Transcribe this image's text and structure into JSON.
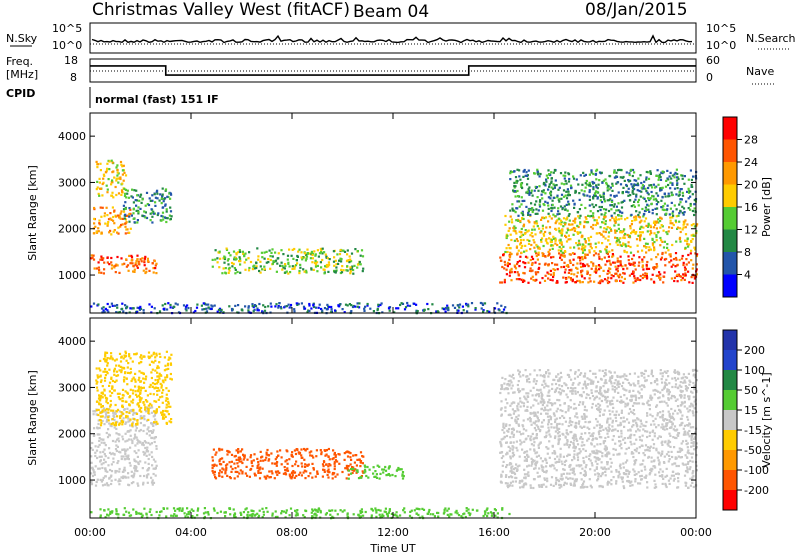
{
  "header": {
    "title": "Christmas Valley West (fitACF)",
    "beam": "Beam 04",
    "date": "08/Jan/2015"
  },
  "noise_panel": {
    "left_label": "N.Sky",
    "right_label": "N.Search",
    "left_ticks": [
      "10^5",
      "10^0"
    ],
    "right_ticks": [
      "10^5",
      "10^0"
    ]
  },
  "freq_panel": {
    "left_label_1": "Freq.",
    "left_label_2": "[MHz]",
    "right_label": "Nave",
    "left_ticks": [
      "18",
      "8"
    ],
    "right_ticks": [
      "60",
      "0"
    ],
    "freq_steps": [
      {
        "start": 0,
        "end": 3.0,
        "value": 15
      },
      {
        "start": 3.0,
        "end": 15.0,
        "value": 11
      },
      {
        "start": 15.0,
        "end": 24.0,
        "value": 15
      }
    ]
  },
  "cpid_panel": {
    "label": "CPID",
    "mode_text": "normal (fast) 151 IF"
  },
  "colors": {
    "power": [
      "#0000ff",
      "#2255aa",
      "#228844",
      "#55cc33",
      "#ffcc00",
      "#ff9900",
      "#ff5500",
      "#ff0000"
    ],
    "velocity": [
      "#2233aa",
      "#2244cc",
      "#228844",
      "#55cc33",
      "#c8c8c8",
      "#ffcc00",
      "#ff9900",
      "#ff5500",
      "#ff0000"
    ],
    "ground_scatter": "#c8c8c8"
  },
  "chart_data": [
    {
      "type": "heatmap",
      "name": "power",
      "ylabel": "Slant Range [km]",
      "xlim": [
        0,
        24
      ],
      "ylim": [
        180,
        4500
      ],
      "yticks": [
        1000,
        2000,
        3000,
        4000
      ],
      "colorbar_label": "Power [dB]",
      "colorbar_ticks": [
        "28",
        "24",
        "20",
        "16",
        "12",
        "8",
        "4"
      ],
      "features": [
        {
          "t0": 0.0,
          "t1": 2.6,
          "r0": 1050,
          "r1": 1450,
          "level": 28
        },
        {
          "t0": 0.1,
          "t1": 1.6,
          "r0": 1900,
          "r1": 2500,
          "level": 24
        },
        {
          "t0": 0.2,
          "t1": 1.4,
          "r0": 2700,
          "r1": 3500,
          "level": 20
        },
        {
          "t0": 1.3,
          "t1": 3.2,
          "r0": 2150,
          "r1": 2900,
          "level": 12
        },
        {
          "t0": 4.8,
          "t1": 10.8,
          "r0": 1050,
          "r1": 1600,
          "level": 16
        },
        {
          "t0": 0.0,
          "t1": 16.6,
          "r0": 200,
          "r1": 420,
          "level": 8
        },
        {
          "t0": 16.2,
          "t1": 24.0,
          "r0": 850,
          "r1": 1500,
          "level": 28
        },
        {
          "t0": 16.4,
          "t1": 24.0,
          "r0": 1500,
          "r1": 2300,
          "level": 20
        },
        {
          "t0": 16.6,
          "t1": 24.0,
          "r0": 2300,
          "r1": 3300,
          "level": 12
        }
      ]
    },
    {
      "type": "heatmap",
      "name": "velocity",
      "xlabel": "Time UT",
      "ylabel": "Slant Range [km]",
      "xlim": [
        0,
        24
      ],
      "ylim": [
        180,
        4500
      ],
      "xticks": [
        "00:00",
        "04:00",
        "08:00",
        "12:00",
        "16:00",
        "20:00",
        "00:00"
      ],
      "yticks": [
        1000,
        2000,
        3000,
        4000
      ],
      "colorbar_label": "Velocity [m s^-1]",
      "colorbar_ticks": [
        "200",
        "100",
        "50",
        "15",
        "-15",
        "-50",
        "-100",
        "-200"
      ],
      "features": [
        {
          "t0": 0.0,
          "t1": 2.6,
          "r0": 900,
          "r1": 2600,
          "level": 0
        },
        {
          "t0": 0.2,
          "t1": 3.2,
          "r0": 2200,
          "r1": 3800,
          "level": -40
        },
        {
          "t0": 4.8,
          "t1": 10.8,
          "r0": 1050,
          "r1": 1700,
          "level": -120
        },
        {
          "t0": 10.2,
          "t1": 12.4,
          "r0": 1050,
          "r1": 1350,
          "level": 40
        },
        {
          "t0": 0.0,
          "t1": 16.6,
          "r0": 200,
          "r1": 420,
          "level": 40
        },
        {
          "t0": 16.2,
          "t1": 24.0,
          "r0": 850,
          "r1": 3400,
          "level": 0
        }
      ]
    }
  ]
}
